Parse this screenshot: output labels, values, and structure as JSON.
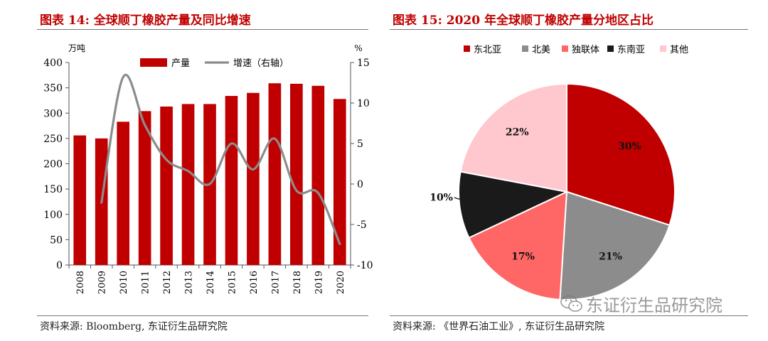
{
  "left": {
    "title": "图表 14:  全球顺丁橡胶产量及同比增速",
    "source": "资料来源: Bloomberg, 东证衍生品研究院"
  },
  "right": {
    "title": "图表 15:  2020 年全球顺丁橡胶产量分地区占比",
    "source": "资料来源: 《世界石油工业》, 东证衍生品研究院",
    "watermark": "东证衍生品研究院"
  },
  "colors": {
    "title_red": "#c00000",
    "bar_red": "#c00000",
    "line_gray": "#8c8c8c"
  },
  "chart_data": [
    {
      "type": "bar",
      "categories": [
        "2008",
        "2009",
        "2010",
        "2011",
        "2012",
        "2013",
        "2014",
        "2015",
        "2016",
        "2017",
        "2018",
        "2019",
        "2020"
      ],
      "series": [
        {
          "name": "产量",
          "type": "bar",
          "axis": "left",
          "color": "#c00000",
          "values": [
            256,
            250,
            283,
            304,
            313,
            318,
            318,
            334,
            340,
            359,
            358,
            354,
            328
          ]
        },
        {
          "name": "增速（右轴）",
          "type": "line",
          "axis": "right",
          "color": "#8c8c8c",
          "values": [
            null,
            -2.3,
            13.2,
            7.3,
            3.0,
            1.6,
            0.0,
            5.0,
            1.8,
            5.6,
            -0.8,
            -1.1,
            -7.4
          ]
        }
      ],
      "ylabel": "万吨",
      "y2label": "%",
      "ylim": [
        0,
        400
      ],
      "y2lim": [
        -10,
        15
      ],
      "yticks": [
        0,
        50,
        100,
        150,
        200,
        250,
        300,
        350,
        400
      ],
      "y2ticks": [
        -10,
        -5,
        0,
        5,
        10,
        15
      ],
      "grid": false,
      "legend": "top-center"
    },
    {
      "type": "pie",
      "labels": [
        "东北亚",
        "北美",
        "独联体",
        "东南亚",
        "其他"
      ],
      "values": [
        30,
        21,
        17,
        10,
        22
      ],
      "value_labels": [
        "30%",
        "21%",
        "17%",
        "10%",
        "22%"
      ],
      "colors": [
        "#c00000",
        "#8c8c8c",
        "#ff6666",
        "#1a1a1a",
        "#ffc7ce"
      ],
      "legend": "top-center"
    }
  ]
}
